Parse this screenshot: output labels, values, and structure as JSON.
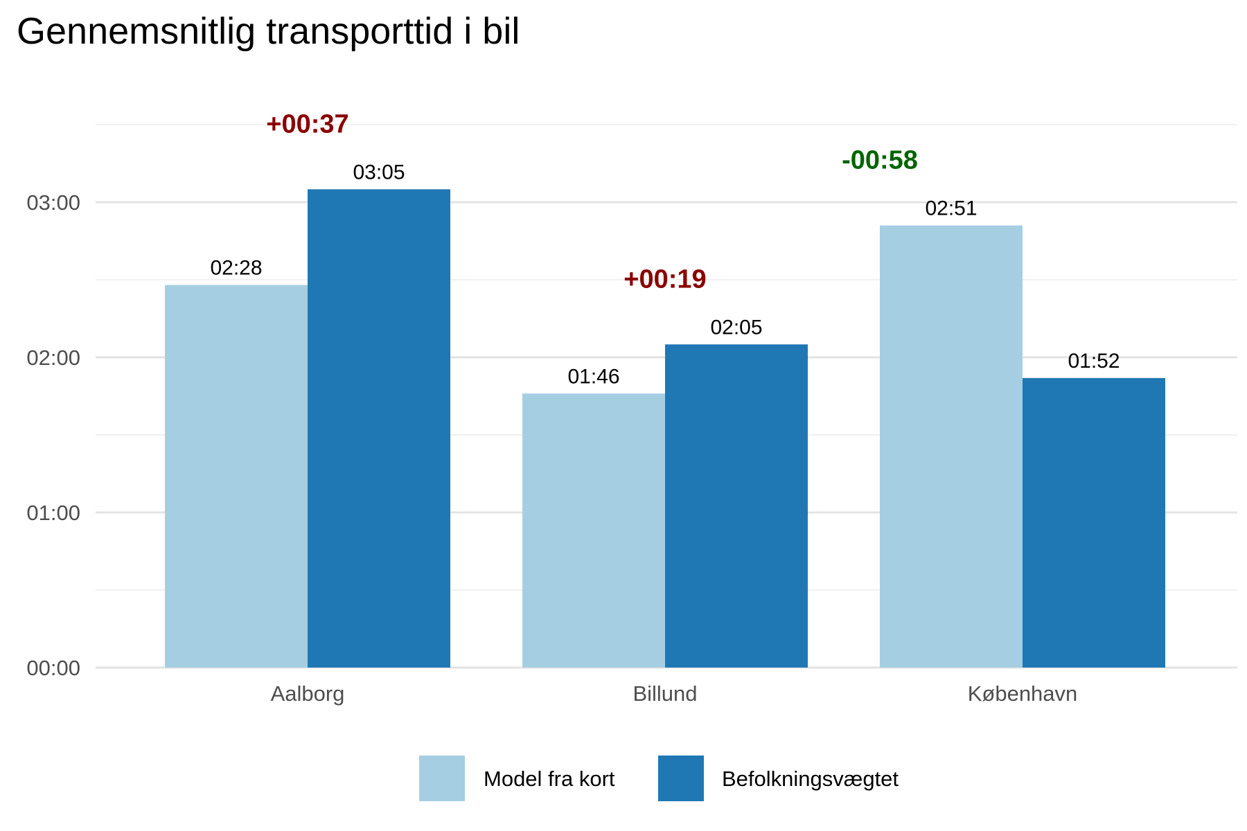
{
  "chart_data": {
    "type": "bar",
    "title": "Gennemsnitlig transporttid i bil",
    "xlabel": "",
    "ylabel": "",
    "ylim_minutes": [
      0,
      210
    ],
    "y_ticks": [
      {
        "minutes": 0,
        "label": "00:00"
      },
      {
        "minutes": 60,
        "label": "01:00"
      },
      {
        "minutes": 120,
        "label": "02:00"
      },
      {
        "minutes": 180,
        "label": "03:00"
      }
    ],
    "grid": true,
    "legend_position": "bottom",
    "categories": [
      "Aalborg",
      "Billund",
      "København"
    ],
    "series": [
      {
        "name": "Model fra kort",
        "color": "#a6cee3",
        "values_minutes": [
          148,
          106,
          171
        ],
        "labels": [
          "02:28",
          "01:46",
          "02:51"
        ]
      },
      {
        "name": "Befolkningsvægtet",
        "color": "#1f78b4",
        "values_minutes": [
          185,
          125,
          112
        ],
        "labels": [
          "03:05",
          "02:05",
          "01:52"
        ]
      }
    ],
    "differences": [
      {
        "label": "+00:37",
        "color": "#8b0000"
      },
      {
        "label": "+00:19",
        "color": "#8b0000"
      },
      {
        "label": "-00:58",
        "color": "#006400"
      }
    ]
  }
}
